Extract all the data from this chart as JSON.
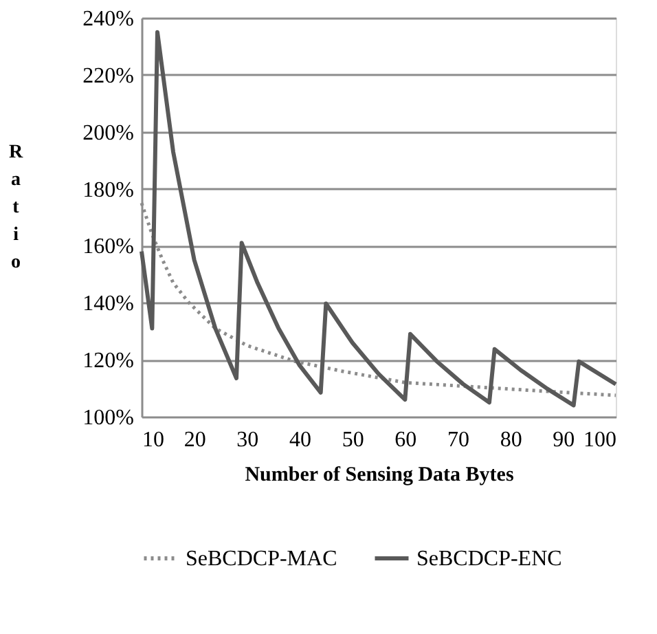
{
  "chart_data": {
    "type": "line",
    "xlabel": "Number of Sensing Data Bytes",
    "ylabel": "Ratio",
    "xlim": [
      10,
      100
    ],
    "xticks": [
      10,
      20,
      30,
      40,
      50,
      60,
      70,
      80,
      90,
      100
    ],
    "ylim": [
      100,
      240
    ],
    "yticks": [
      {
        "value": 100,
        "label": "100%"
      },
      {
        "value": 120,
        "label": "120%"
      },
      {
        "value": 140,
        "label": "140%"
      },
      {
        "value": 160,
        "label": "160%"
      },
      {
        "value": 180,
        "label": "180%"
      },
      {
        "value": 200,
        "label": "200%"
      },
      {
        "value": 220,
        "label": "220%"
      },
      {
        "value": 240,
        "label": "240%"
      }
    ],
    "grid": "y",
    "legend": "bottom",
    "marker": "none",
    "series": [
      {
        "name": "SeBCDCP-MAC",
        "color": "#8c8c8c",
        "line_style": "dotted",
        "x": [
          10,
          12,
          14,
          16,
          19,
          24,
          30,
          39,
          48,
          60,
          73,
          86,
          100
        ],
        "values": [
          175,
          164,
          155,
          147,
          140,
          131,
          125,
          119.5,
          116,
          112,
          110.5,
          109,
          107.5
        ]
      },
      {
        "name": "SeBCDCP-ENC",
        "color": "#595959",
        "line_style": "solid",
        "x": [
          10,
          12,
          13,
          16,
          20,
          24,
          28,
          29,
          32,
          36,
          40,
          44,
          45,
          50,
          55,
          60,
          61,
          66,
          71,
          76,
          77,
          82,
          87,
          92,
          93,
          100
        ],
        "values": [
          158,
          131,
          235,
          193,
          155,
          131,
          113.5,
          161,
          147,
          131,
          118,
          108.5,
          139.7,
          126,
          115,
          106,
          129,
          119.5,
          111.5,
          105,
          123.7,
          116.3,
          109.8,
          104,
          119.4,
          111.4
        ]
      }
    ]
  }
}
